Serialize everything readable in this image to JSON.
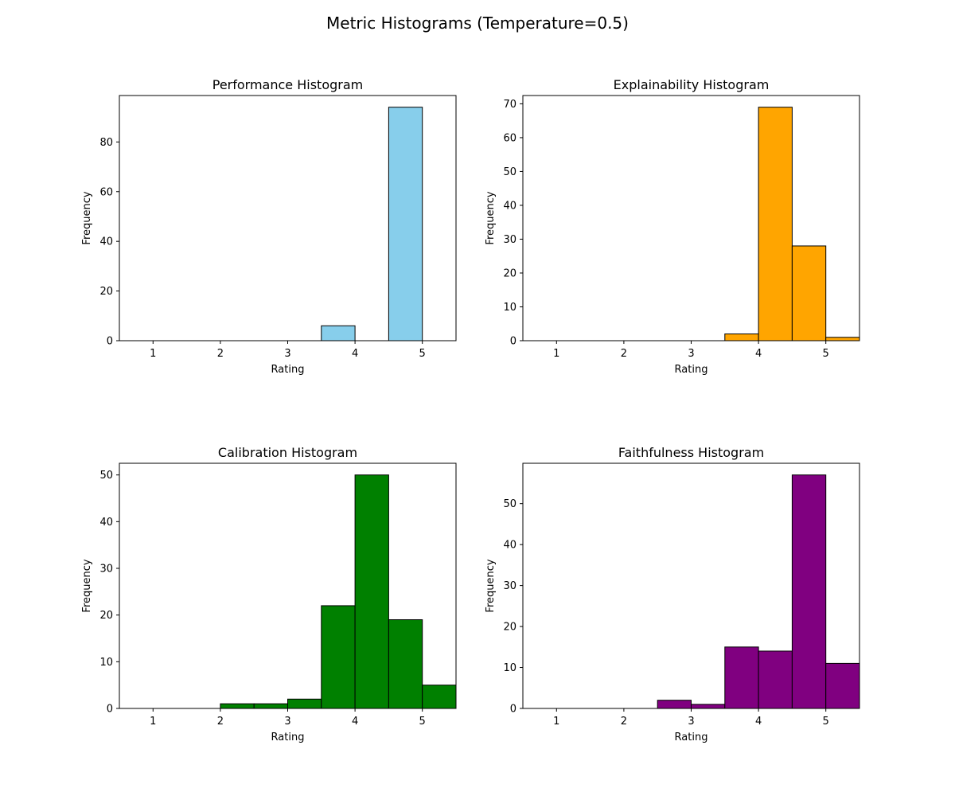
{
  "figure": {
    "title": "Metric Histograms (Temperature=0.5)"
  },
  "chart_data": [
    {
      "type": "bar",
      "title": "Performance Histogram",
      "xlabel": "Rating",
      "ylabel": "Frequency",
      "color": "#87CEEB",
      "edge_color": "#000000",
      "bin_edges": [
        1.0,
        1.5,
        2.0,
        2.5,
        3.0,
        3.5,
        4.0,
        4.5,
        5.0,
        5.5
      ],
      "values": [
        0,
        0,
        0,
        0,
        0,
        6,
        0,
        94,
        0
      ],
      "xlim": [
        0.5,
        5.5
      ],
      "ylim": [
        0,
        98.7
      ],
      "xticks": [
        1,
        2,
        3,
        4,
        5
      ],
      "yticks": [
        0,
        20,
        40,
        60,
        80
      ],
      "grid": false
    },
    {
      "type": "bar",
      "title": "Explainability Histogram",
      "xlabel": "Rating",
      "ylabel": "Frequency",
      "color": "#FFA500",
      "edge_color": "#000000",
      "bin_edges": [
        1.0,
        1.5,
        2.0,
        2.5,
        3.0,
        3.5,
        4.0,
        4.5,
        5.0,
        5.5
      ],
      "values": [
        0,
        0,
        0,
        0,
        0,
        2,
        69,
        28,
        1
      ],
      "xlim": [
        0.5,
        5.5
      ],
      "ylim": [
        0,
        72.45
      ],
      "xticks": [
        1,
        2,
        3,
        4,
        5
      ],
      "yticks": [
        0,
        10,
        20,
        30,
        40,
        50,
        60,
        70
      ],
      "grid": false
    },
    {
      "type": "bar",
      "title": "Calibration Histogram",
      "xlabel": "Rating",
      "ylabel": "Frequency",
      "color": "#008000",
      "edge_color": "#000000",
      "bin_edges": [
        1.0,
        1.5,
        2.0,
        2.5,
        3.0,
        3.5,
        4.0,
        4.5,
        5.0,
        5.5
      ],
      "values": [
        0,
        0,
        1,
        1,
        2,
        22,
        50,
        19,
        5
      ],
      "xlim": [
        0.5,
        5.5
      ],
      "ylim": [
        0,
        52.5
      ],
      "xticks": [
        1,
        2,
        3,
        4,
        5
      ],
      "yticks": [
        0,
        10,
        20,
        30,
        40,
        50
      ],
      "grid": false
    },
    {
      "type": "bar",
      "title": "Faithfulness Histogram",
      "xlabel": "Rating",
      "ylabel": "Frequency",
      "color": "#800080",
      "edge_color": "#000000",
      "bin_edges": [
        1.0,
        1.5,
        2.0,
        2.5,
        3.0,
        3.5,
        4.0,
        4.5,
        5.0,
        5.5
      ],
      "values": [
        0,
        0,
        0,
        2,
        1,
        15,
        14,
        57,
        11
      ],
      "xlim": [
        0.5,
        5.5
      ],
      "ylim": [
        0,
        59.85
      ],
      "xticks": [
        1,
        2,
        3,
        4,
        5
      ],
      "yticks": [
        0,
        10,
        20,
        30,
        40,
        50
      ],
      "grid": false
    }
  ]
}
